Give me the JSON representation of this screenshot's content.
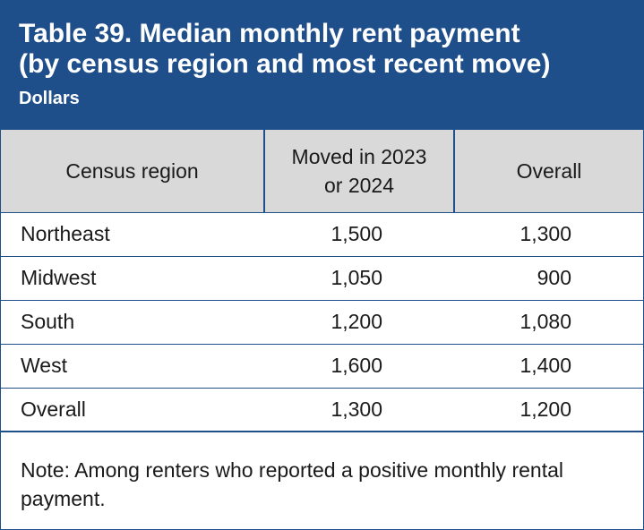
{
  "table": {
    "title_line1": "Table 39. Median monthly rent payment",
    "title_line2": "(by census region and most recent move)",
    "units": "Dollars",
    "columns": {
      "col1": "Census region",
      "col2_line1": "Moved in 2023",
      "col2_line2": "or 2024",
      "col3": "Overall"
    },
    "rows": [
      {
        "region": "Northeast",
        "moved": "1,500",
        "overall": "1,300"
      },
      {
        "region": "Midwest",
        "moved": "1,050",
        "overall": "900"
      },
      {
        "region": "South",
        "moved": "1,200",
        "overall": "1,080"
      },
      {
        "region": "West",
        "moved": "1,600",
        "overall": "1,400"
      },
      {
        "region": "Overall",
        "moved": "1,300",
        "overall": "1,200"
      }
    ],
    "note": "Note: Among renters who reported a positive monthly rental payment."
  },
  "colors": {
    "header_bg": "#1f4f8b",
    "column_header_bg": "#d9d9d9"
  }
}
